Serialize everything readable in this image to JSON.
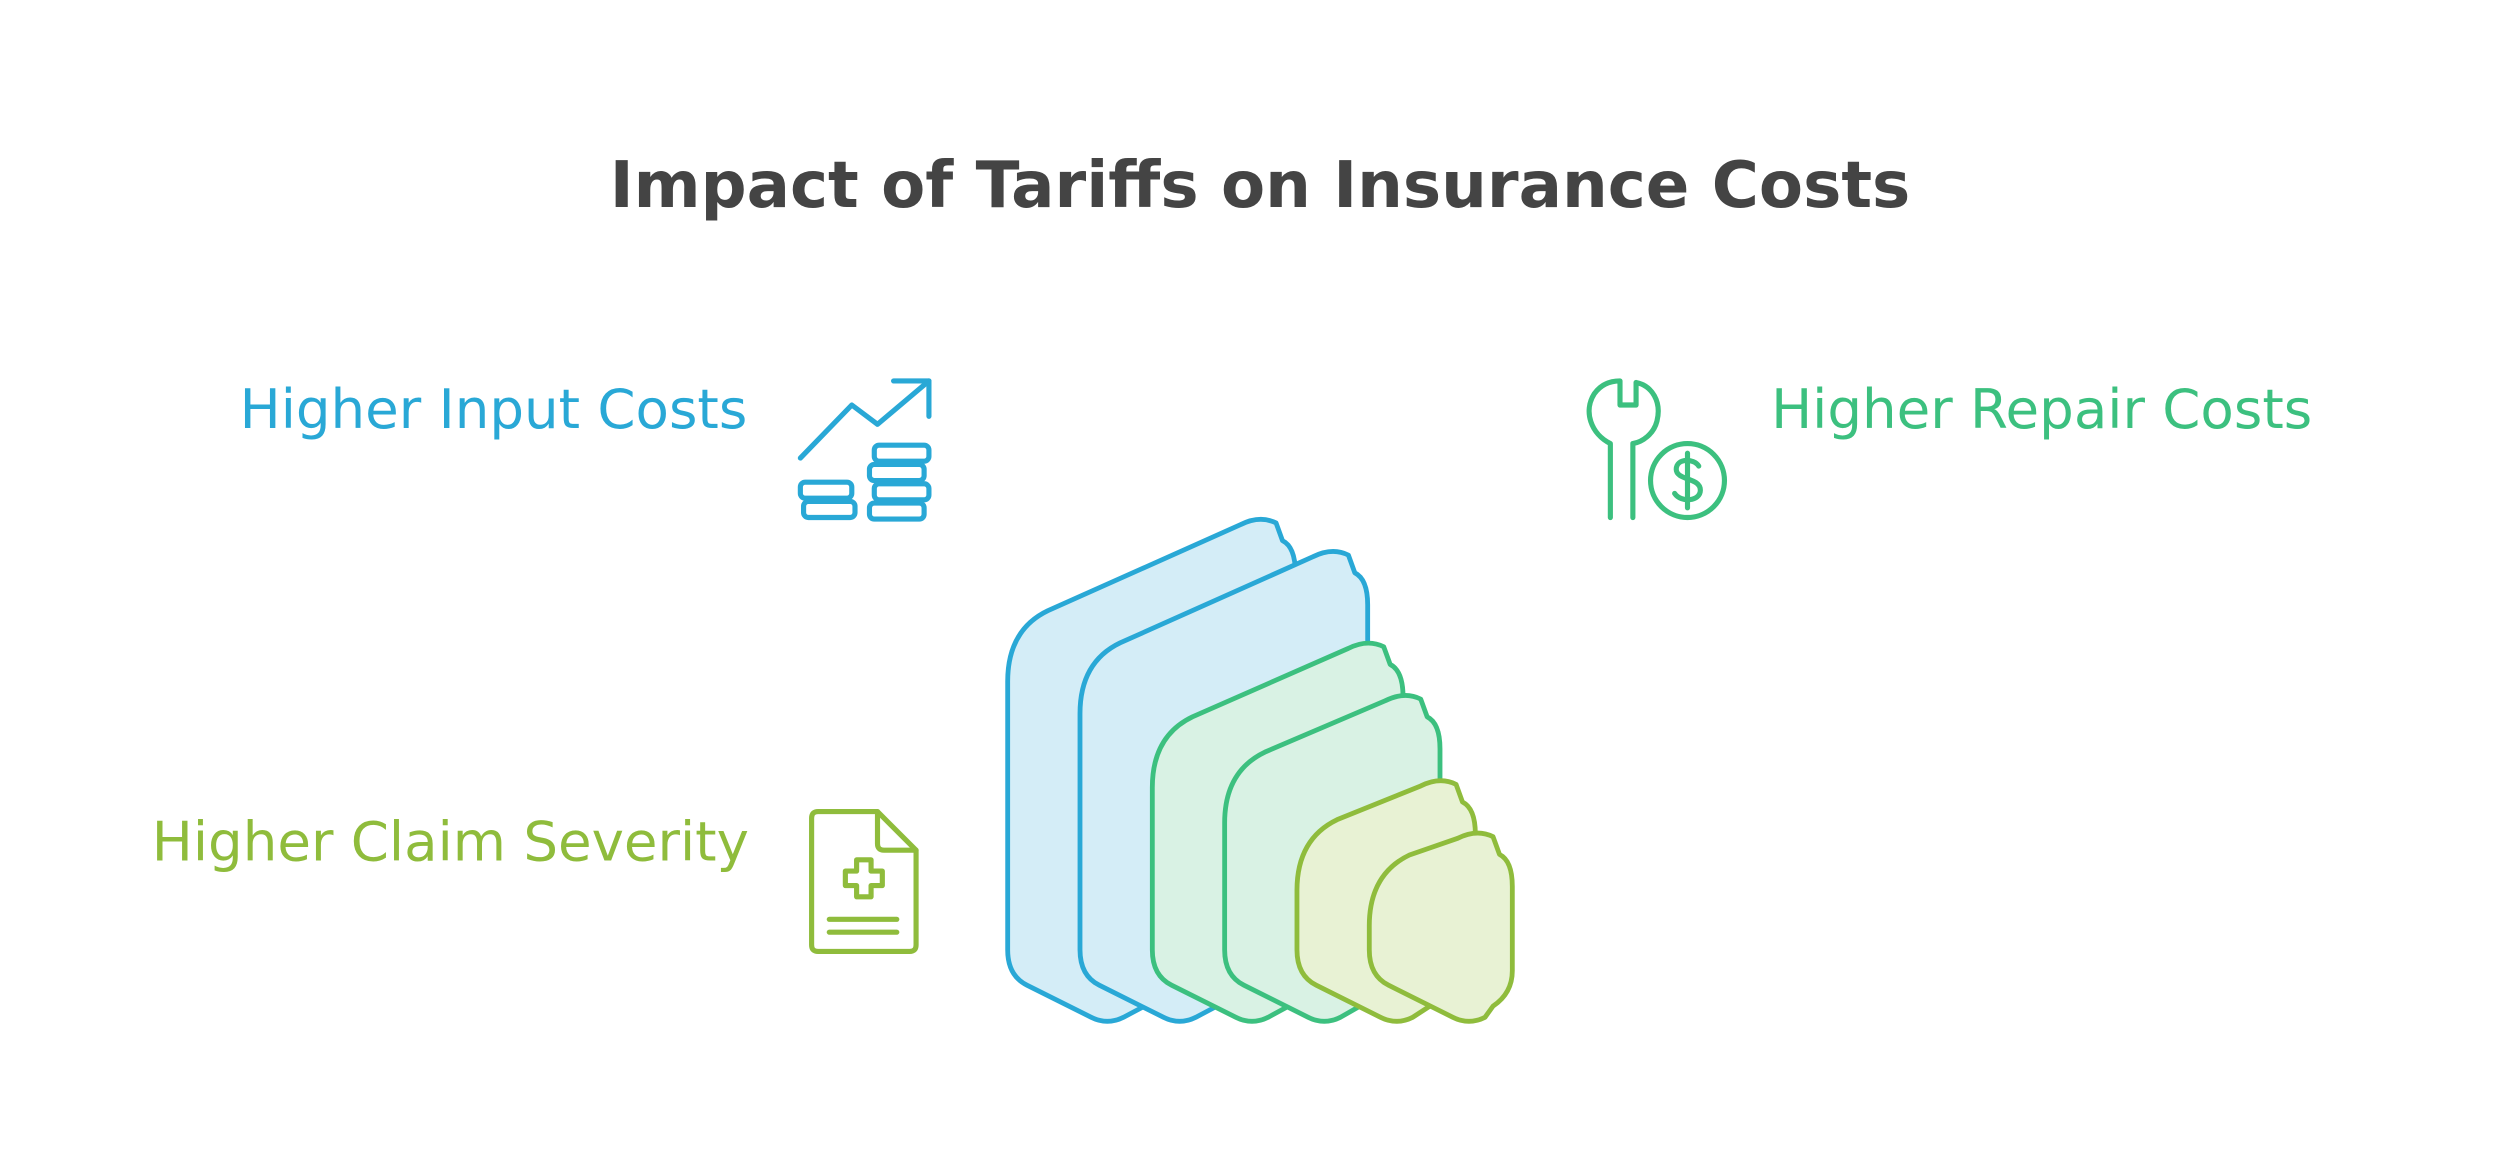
{
  "title": "Impact of Tariffs on Insurance Costs",
  "items": [
    {
      "label": "Higher Input Costs"
    },
    {
      "label": "Higher Repair Costs"
    },
    {
      "label": "Higher Claim Severity"
    }
  ]
}
